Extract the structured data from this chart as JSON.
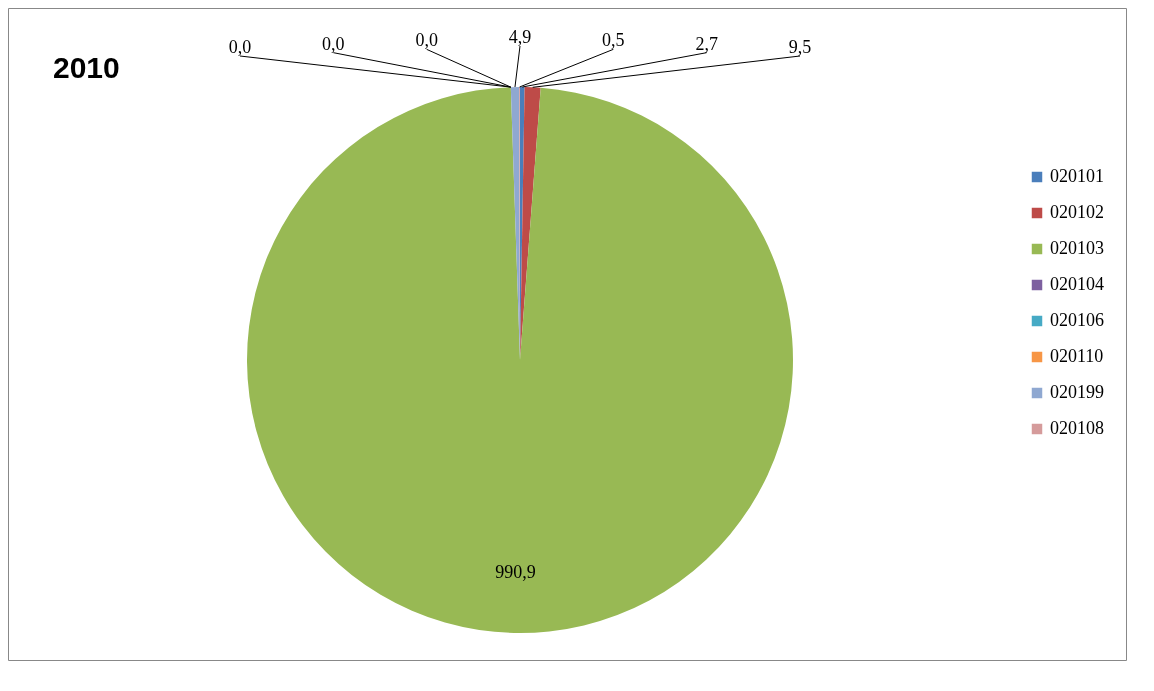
{
  "chart_data": {
    "type": "pie",
    "title": "2010",
    "categories": [
      "020101",
      "020102",
      "020103",
      "020104",
      "020106",
      "020110",
      "020199",
      "020108"
    ],
    "values": [
      2.7,
      9.5,
      990.9,
      0.0,
      0.0,
      0.0,
      4.9,
      0.5
    ],
    "colors": [
      "#4a7ebb",
      "#be4b48",
      "#98b954",
      "#7d60a0",
      "#46aac5",
      "#f79646",
      "#8fa8d1",
      "#d59b9b"
    ],
    "value_labels": [
      "2,7",
      "9,5",
      "990,9",
      "0,0",
      "0,0",
      "0,0",
      "4,9",
      "0,5"
    ],
    "legend": "right"
  }
}
